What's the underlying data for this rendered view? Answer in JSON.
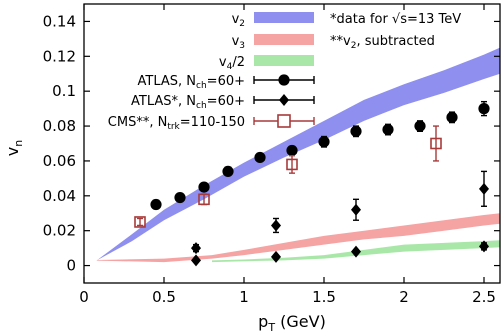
{
  "chart_data": {
    "type": "scatter",
    "title": "",
    "xlabel": "p_T (GeV)",
    "ylabel": "v_n",
    "xlim": [
      0,
      2.6
    ],
    "ylim": [
      -0.01,
      0.15
    ],
    "x_ticks": [
      0,
      0.5,
      1,
      1.5,
      2,
      2.5
    ],
    "y_ticks": [
      0,
      0.02,
      0.04,
      0.06,
      0.08,
      0.1,
      0.12,
      0.14
    ],
    "x_tick_labels": [
      "0",
      "0.5",
      "1",
      "1.5",
      "2",
      "2.5"
    ],
    "y_tick_labels": [
      "0",
      "0.02",
      "0.04",
      "0.06",
      "0.08",
      "0.1",
      "0.12",
      "0.14"
    ],
    "legend_position": "top",
    "notes": [
      "*data for √s=13 TeV",
      "**v2, subtracted"
    ],
    "bands": [
      {
        "name": "v2",
        "color": "#8f8ff0",
        "x": [
          0.08,
          0.3,
          0.5,
          0.75,
          1.0,
          1.25,
          1.5,
          1.75,
          2.0,
          2.25,
          2.5,
          2.6
        ],
        "lower": [
          0.003,
          0.014,
          0.026,
          0.038,
          0.051,
          0.062,
          0.072,
          0.083,
          0.092,
          0.099,
          0.107,
          0.11
        ],
        "upper": [
          0.003,
          0.018,
          0.032,
          0.046,
          0.059,
          0.071,
          0.083,
          0.095,
          0.104,
          0.112,
          0.121,
          0.125
        ]
      },
      {
        "name": "v3",
        "color": "#f5a3a3",
        "x": [
          0.08,
          0.5,
          0.8,
          1.0,
          1.25,
          1.5,
          1.75,
          2.0,
          2.25,
          2.5,
          2.6
        ],
        "lower": [
          0.0028,
          0.002,
          0.004,
          0.006,
          0.009,
          0.012,
          0.015,
          0.017,
          0.02,
          0.023,
          0.024
        ],
        "upper": [
          0.0032,
          0.004,
          0.006,
          0.009,
          0.013,
          0.017,
          0.02,
          0.023,
          0.026,
          0.029,
          0.03
        ]
      },
      {
        "name": "v4/2",
        "color": "#a9e7a9",
        "x": [
          0.8,
          1.0,
          1.25,
          1.5,
          1.75,
          2.0,
          2.25,
          2.5,
          2.6
        ],
        "lower": [
          0.002,
          0.0025,
          0.003,
          0.004,
          0.006,
          0.008,
          0.009,
          0.01,
          0.0105
        ],
        "upper": [
          0.003,
          0.0035,
          0.0045,
          0.006,
          0.009,
          0.012,
          0.013,
          0.014,
          0.0145
        ]
      }
    ],
    "series": [
      {
        "name": "ATLAS, Nch=60+",
        "marker": "circle",
        "x": [
          0.45,
          0.6,
          0.75,
          0.9,
          1.1,
          1.3,
          1.5,
          1.7,
          1.9,
          2.1,
          2.3,
          2.5
        ],
        "y": [
          0.035,
          0.039,
          0.045,
          0.054,
          0.062,
          0.066,
          0.071,
          0.077,
          0.078,
          0.08,
          0.085,
          0.09
        ],
        "err": [
          0.002,
          0.002,
          0.002,
          0.002,
          0.002,
          0.002,
          0.003,
          0.003,
          0.003,
          0.003,
          0.003,
          0.004
        ]
      },
      {
        "name": "ATLAS*, Nch=60+",
        "marker": "diamond",
        "x": [
          0.7,
          0.7,
          1.2,
          1.2,
          1.7,
          1.7,
          2.5,
          2.5
        ],
        "y": [
          0.01,
          0.003,
          0.023,
          0.005,
          0.032,
          0.008,
          0.044,
          0.011
        ],
        "err": [
          0.002,
          0.001,
          0.004,
          0.001,
          0.006,
          0.001,
          0.01,
          0.002
        ]
      },
      {
        "name": "CMS**, Ntrk=110-150",
        "marker": "open-square",
        "x": [
          0.35,
          0.75,
          1.3,
          2.2
        ],
        "y": [
          0.025,
          0.038,
          0.058,
          0.07
        ],
        "err": [
          0.002,
          0.003,
          0.005,
          0.01
        ]
      }
    ],
    "legend": {
      "bands": [
        {
          "base": "v",
          "sub": "2",
          "tail": "",
          "color": "#8f8ff0"
        },
        {
          "base": "v",
          "sub": "3",
          "tail": "",
          "color": "#f5a3a3"
        },
        {
          "base": "v",
          "sub": "4",
          "tail": "/2",
          "color": "#a9e7a9"
        }
      ],
      "markers": [
        {
          "pre": "ATLAS, N",
          "sub": "ch",
          "post": "=60+",
          "marker": "circle"
        },
        {
          "pre": "ATLAS*, N",
          "sub": "ch",
          "post": "=60+",
          "marker": "diamond"
        },
        {
          "pre": "CMS**, N",
          "sub": "trk",
          "post": "=110-150",
          "marker": "open-square"
        }
      ]
    }
  }
}
